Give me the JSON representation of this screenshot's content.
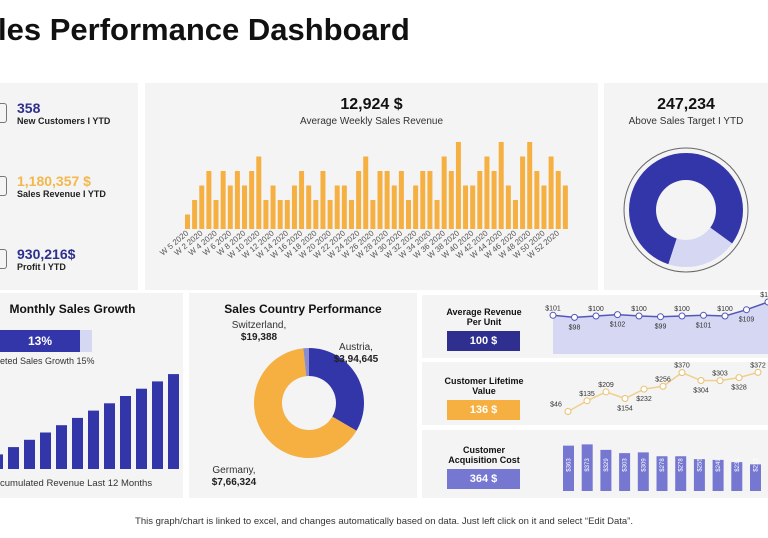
{
  "title": "les Performance Dashboard",
  "kpis": [
    {
      "value": "358",
      "label": "New Customers I YTD",
      "color": "#2e2f8f",
      "icon": "customer-icon"
    },
    {
      "value": "1,180,357 $",
      "label": "Sales Revenue I YTD",
      "color": "#f2b84b",
      "icon": "coin-icon"
    },
    {
      "value": "930,216$",
      "label": "Profit I YTD",
      "color": "#2e2f8f",
      "icon": "profit-icon"
    }
  ],
  "weekly": {
    "value": "12,924 $",
    "label": "Average Weekly Sales Revenue",
    "color": "#f5b041",
    "chart_data": {
      "type": "bar",
      "values": [
        1,
        2,
        3,
        4,
        2,
        4,
        3,
        4,
        3,
        4,
        5,
        2,
        3,
        2,
        2,
        3,
        4,
        3,
        2,
        4,
        2,
        3,
        3,
        2,
        4,
        5,
        2,
        4,
        4,
        3,
        4,
        2,
        3,
        4,
        4,
        2,
        5,
        4,
        6,
        3,
        3,
        4,
        5,
        4,
        6,
        3,
        2,
        5,
        6,
        4,
        3,
        5,
        4,
        3
      ],
      "tick_labels": [
        "W 5 2020",
        "W 2 2020",
        "W 4 2020",
        "W 6 2020",
        "W 8 2020",
        "W 10 2020",
        "W 12 2020",
        "W 14 2020",
        "W 16 2020",
        "W 18 2020",
        "W 20 2020",
        "W 22 2020",
        "W 24 2020",
        "W 26 2020",
        "W 28 2020",
        "W 30 2020",
        "W 32 2020",
        "W 34 2020",
        "W 36 2020",
        "W 38 2020",
        "W 40 2020",
        "W 42 2020",
        "W 44 2020",
        "W 46 2020",
        "W 48 2020",
        "W 50 2020",
        "W 52 2020"
      ]
    }
  },
  "target": {
    "value": "247,234",
    "label": "Above Sales Target I YTD",
    "chart_data": {
      "type": "pie",
      "values": [
        80,
        20
      ],
      "colors": [
        "#3336a8",
        "#d6d7f2"
      ]
    }
  },
  "growth": {
    "title": "Monthly Sales Growth",
    "value": "13%",
    "progress": 0.87,
    "caption": "eted Sales Growth 15%",
    "footer": "cumulated Revenue  Last 12 Months",
    "chart_data": {
      "type": "bar",
      "values": [
        2,
        3,
        4,
        5,
        6,
        7,
        8,
        9,
        10,
        11,
        12,
        13
      ],
      "color": "#3336a8"
    }
  },
  "country": {
    "title": "Sales Country Performance",
    "chart_data": {
      "type": "pie",
      "labels": [
        "Austria,",
        "Germany,",
        "Switzerland,"
      ],
      "value_labels": [
        "$3,94,645",
        "$7,66,324",
        "$19,388"
      ],
      "values": [
        394645,
        766324,
        19388
      ],
      "colors": [
        "#3336a8",
        "#f5b041",
        "#8a8ccf"
      ]
    }
  },
  "arpu": {
    "label": "Average Revenue Per Unit",
    "value": "100 $",
    "color": "#2e2f8f",
    "chart_data": {
      "type": "area",
      "values": [
        101,
        98,
        100,
        102,
        100,
        99,
        100,
        101,
        100,
        109,
        120
      ],
      "labels": [
        "$101",
        "$98",
        "$100",
        "$102",
        "$100",
        "$99",
        "$100",
        "$101",
        "$100",
        "$109",
        "$120"
      ]
    }
  },
  "clv": {
    "label": "Customer Lifetime Value",
    "value": "136 $",
    "color": "#f5b041",
    "chart_data": {
      "type": "line",
      "values": [
        46,
        135,
        209,
        154,
        232,
        256,
        370,
        304,
        303,
        328,
        372
      ],
      "labels": [
        "$46",
        "$135",
        "$209",
        "$154",
        "$232",
        "$256",
        "$370",
        "$304",
        "$303",
        "$328",
        "$372"
      ]
    }
  },
  "cac": {
    "label": "Customer Acquisition Cost",
    "value": "364 $",
    "color": "#7577d1",
    "chart_data": {
      "type": "bar",
      "values": [
        363,
        373,
        329,
        303,
        309,
        278,
        278,
        255,
        249,
        231,
        213
      ],
      "labels": [
        "$363",
        "$373",
        "$329",
        "$303",
        "$309",
        "$278",
        "$278",
        "$255",
        "$249",
        "$231",
        "$213"
      ]
    }
  },
  "footer": "This graph/chart is linked to excel, and changes automatically based on data. Just left click on it and select “Edit Data”."
}
